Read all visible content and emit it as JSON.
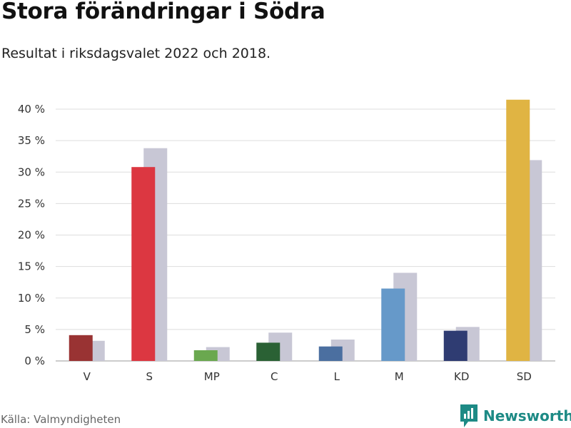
{
  "title": "Stora förändringar i Södra",
  "subtitle": "Resultat i riksdagsvalet 2022 och 2018.",
  "source": "Källa: Valmyndigheten",
  "brand": {
    "name": "Newsworthy",
    "icon": "newsworthy-logo-icon",
    "color": "#1d8a85"
  },
  "chart_data": {
    "type": "bar",
    "title": "Stora förändringar i Södra",
    "subtitle": "Resultat i riksdagsvalet 2022 och 2018.",
    "categories": [
      "V",
      "S",
      "MP",
      "C",
      "L",
      "M",
      "KD",
      "SD"
    ],
    "series": [
      {
        "values": [
          4.1,
          30.8,
          1.7,
          2.9,
          2.3,
          11.5,
          4.8,
          41.5
        ],
        "colors": [
          "#993333",
          "#dc3741",
          "#6aa84f",
          "#2a6134",
          "#4b6fa0",
          "#6699c9",
          "#2f3c72",
          "#e0b443"
        ]
      },
      {
        "values": [
          3.2,
          33.8,
          2.2,
          4.5,
          3.4,
          14.0,
          5.4,
          31.9
        ],
        "color": "#c8c7d5"
      }
    ],
    "ylim": [
      0,
      40
    ],
    "yticks": [
      0,
      5,
      10,
      15,
      20,
      25,
      30,
      35,
      40
    ],
    "ytick_suffix": " %",
    "grid": true,
    "legend": "none"
  }
}
